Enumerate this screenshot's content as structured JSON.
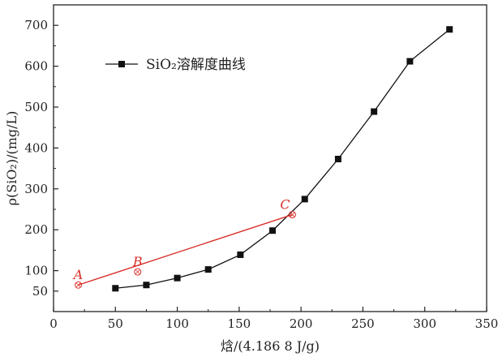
{
  "chart_data": {
    "type": "line",
    "xlabel": "焓/(4.186 8 J/g)",
    "ylabel": "ρ(SiO₂)/(mg/L)",
    "xlim": [
      0,
      350
    ],
    "ylim": [
      0,
      750
    ],
    "xticks": [
      0,
      50,
      100,
      150,
      200,
      250,
      300,
      350
    ],
    "yticks": [
      50,
      100,
      200,
      300,
      400,
      500,
      600,
      700
    ],
    "grid": false,
    "legend_placement": "top-left",
    "series": [
      {
        "name": "SiO₂溶解度曲线",
        "marker": "square",
        "color": "#111111",
        "x": [
          50,
          75,
          100,
          125,
          151,
          177,
          203,
          230,
          259,
          288,
          320
        ],
        "y": [
          57,
          65,
          82,
          103,
          139,
          198,
          275,
          373,
          489,
          612,
          690
        ]
      }
    ],
    "annotations": {
      "line": {
        "color": "#d9302a",
        "points": [
          {
            "label": "A",
            "x": 20,
            "y": 65
          },
          {
            "label": "B",
            "x": 68,
            "y": 97
          },
          {
            "label": "C",
            "x": 193,
            "y": 237
          }
        ]
      }
    }
  }
}
